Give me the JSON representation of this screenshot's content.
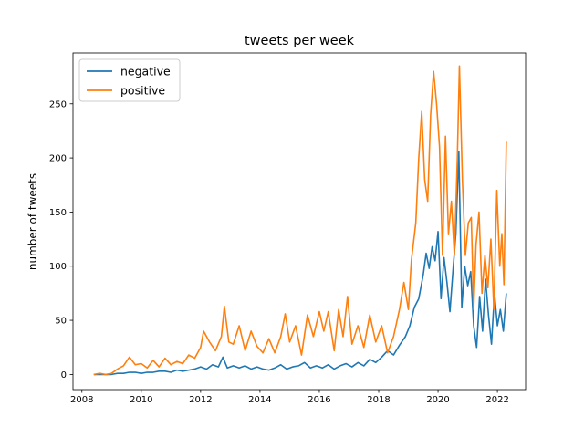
{
  "chart_data": {
    "type": "line",
    "title": "tweets per week",
    "xlabel": "",
    "ylabel": "number of tweets",
    "xlim": [
      2007.7,
      2022.95
    ],
    "ylim": [
      -14,
      297
    ],
    "xticks": [
      "2008",
      "2010",
      "2012",
      "2014",
      "2016",
      "2018",
      "2020",
      "2022"
    ],
    "yticks": [
      "0",
      "50",
      "100",
      "150",
      "200",
      "250"
    ],
    "grid": false,
    "legend": "top-left",
    "series": [
      {
        "name": "negative",
        "color": "#1f77b4",
        "points": [
          [
            2008.4,
            0
          ],
          [
            2008.6,
            0
          ],
          [
            2008.8,
            0
          ],
          [
            2009.0,
            0
          ],
          [
            2009.2,
            1
          ],
          [
            2009.4,
            1
          ],
          [
            2009.6,
            2
          ],
          [
            2009.8,
            2
          ],
          [
            2010.0,
            1
          ],
          [
            2010.2,
            2
          ],
          [
            2010.4,
            2
          ],
          [
            2010.6,
            3
          ],
          [
            2010.8,
            3
          ],
          [
            2011.0,
            2
          ],
          [
            2011.2,
            4
          ],
          [
            2011.4,
            3
          ],
          [
            2011.6,
            4
          ],
          [
            2011.8,
            5
          ],
          [
            2012.0,
            7
          ],
          [
            2012.2,
            5
          ],
          [
            2012.4,
            9
          ],
          [
            2012.6,
            7
          ],
          [
            2012.75,
            16
          ],
          [
            2012.9,
            6
          ],
          [
            2013.1,
            8
          ],
          [
            2013.3,
            6
          ],
          [
            2013.5,
            8
          ],
          [
            2013.7,
            5
          ],
          [
            2013.9,
            7
          ],
          [
            2014.1,
            5
          ],
          [
            2014.3,
            4
          ],
          [
            2014.5,
            6
          ],
          [
            2014.7,
            9
          ],
          [
            2014.9,
            5
          ],
          [
            2015.1,
            7
          ],
          [
            2015.3,
            8
          ],
          [
            2015.5,
            11
          ],
          [
            2015.7,
            6
          ],
          [
            2015.9,
            8
          ],
          [
            2016.1,
            6
          ],
          [
            2016.3,
            9
          ],
          [
            2016.5,
            5
          ],
          [
            2016.7,
            8
          ],
          [
            2016.9,
            10
          ],
          [
            2017.1,
            7
          ],
          [
            2017.3,
            11
          ],
          [
            2017.5,
            8
          ],
          [
            2017.7,
            14
          ],
          [
            2017.9,
            11
          ],
          [
            2018.1,
            16
          ],
          [
            2018.3,
            22
          ],
          [
            2018.5,
            18
          ],
          [
            2018.7,
            27
          ],
          [
            2018.9,
            35
          ],
          [
            2019.05,
            45
          ],
          [
            2019.2,
            62
          ],
          [
            2019.35,
            70
          ],
          [
            2019.5,
            92
          ],
          [
            2019.6,
            112
          ],
          [
            2019.7,
            98
          ],
          [
            2019.8,
            118
          ],
          [
            2019.9,
            105
          ],
          [
            2020.0,
            132
          ],
          [
            2020.1,
            70
          ],
          [
            2020.2,
            108
          ],
          [
            2020.3,
            85
          ],
          [
            2020.4,
            58
          ],
          [
            2020.5,
            95
          ],
          [
            2020.6,
            130
          ],
          [
            2020.7,
            206
          ],
          [
            2020.8,
            62
          ],
          [
            2020.9,
            100
          ],
          [
            2021.0,
            82
          ],
          [
            2021.1,
            95
          ],
          [
            2021.2,
            45
          ],
          [
            2021.3,
            25
          ],
          [
            2021.4,
            72
          ],
          [
            2021.5,
            40
          ],
          [
            2021.6,
            88
          ],
          [
            2021.7,
            55
          ],
          [
            2021.8,
            28
          ],
          [
            2021.9,
            75
          ],
          [
            2022.0,
            45
          ],
          [
            2022.1,
            60
          ],
          [
            2022.2,
            40
          ],
          [
            2022.3,
            75
          ]
        ]
      },
      {
        "name": "positive",
        "color": "#ff7f0e",
        "points": [
          [
            2008.4,
            0
          ],
          [
            2008.6,
            1
          ],
          [
            2008.8,
            0
          ],
          [
            2009.0,
            1
          ],
          [
            2009.2,
            5
          ],
          [
            2009.4,
            8
          ],
          [
            2009.6,
            16
          ],
          [
            2009.8,
            9
          ],
          [
            2010.0,
            10
          ],
          [
            2010.2,
            6
          ],
          [
            2010.4,
            13
          ],
          [
            2010.6,
            7
          ],
          [
            2010.8,
            15
          ],
          [
            2011.0,
            9
          ],
          [
            2011.2,
            12
          ],
          [
            2011.4,
            10
          ],
          [
            2011.6,
            18
          ],
          [
            2011.8,
            15
          ],
          [
            2012.0,
            25
          ],
          [
            2012.1,
            40
          ],
          [
            2012.3,
            30
          ],
          [
            2012.5,
            22
          ],
          [
            2012.7,
            35
          ],
          [
            2012.8,
            63
          ],
          [
            2012.95,
            30
          ],
          [
            2013.1,
            28
          ],
          [
            2013.3,
            45
          ],
          [
            2013.5,
            22
          ],
          [
            2013.7,
            40
          ],
          [
            2013.9,
            26
          ],
          [
            2014.1,
            20
          ],
          [
            2014.3,
            33
          ],
          [
            2014.5,
            20
          ],
          [
            2014.7,
            35
          ],
          [
            2014.85,
            56
          ],
          [
            2015.0,
            30
          ],
          [
            2015.2,
            45
          ],
          [
            2015.4,
            18
          ],
          [
            2015.6,
            55
          ],
          [
            2015.8,
            35
          ],
          [
            2016.0,
            58
          ],
          [
            2016.15,
            40
          ],
          [
            2016.3,
            58
          ],
          [
            2016.5,
            22
          ],
          [
            2016.65,
            60
          ],
          [
            2016.8,
            35
          ],
          [
            2016.95,
            72
          ],
          [
            2017.1,
            28
          ],
          [
            2017.3,
            45
          ],
          [
            2017.5,
            25
          ],
          [
            2017.7,
            55
          ],
          [
            2017.9,
            30
          ],
          [
            2018.1,
            45
          ],
          [
            2018.3,
            20
          ],
          [
            2018.5,
            35
          ],
          [
            2018.7,
            60
          ],
          [
            2018.85,
            85
          ],
          [
            2019.0,
            60
          ],
          [
            2019.1,
            105
          ],
          [
            2019.25,
            140
          ],
          [
            2019.35,
            200
          ],
          [
            2019.45,
            243
          ],
          [
            2019.55,
            180
          ],
          [
            2019.65,
            160
          ],
          [
            2019.75,
            240
          ],
          [
            2019.85,
            280
          ],
          [
            2019.95,
            250
          ],
          [
            2020.05,
            210
          ],
          [
            2020.15,
            110
          ],
          [
            2020.25,
            220
          ],
          [
            2020.35,
            130
          ],
          [
            2020.45,
            160
          ],
          [
            2020.55,
            110
          ],
          [
            2020.65,
            200
          ],
          [
            2020.72,
            285
          ],
          [
            2020.82,
            180
          ],
          [
            2020.92,
            110
          ],
          [
            2021.02,
            140
          ],
          [
            2021.12,
            145
          ],
          [
            2021.2,
            60
          ],
          [
            2021.28,
            120
          ],
          [
            2021.38,
            150
          ],
          [
            2021.48,
            75
          ],
          [
            2021.58,
            110
          ],
          [
            2021.68,
            80
          ],
          [
            2021.78,
            125
          ],
          [
            2021.88,
            60
          ],
          [
            2021.98,
            170
          ],
          [
            2022.08,
            100
          ],
          [
            2022.15,
            130
          ],
          [
            2022.22,
            83
          ],
          [
            2022.3,
            215
          ]
        ]
      }
    ]
  }
}
